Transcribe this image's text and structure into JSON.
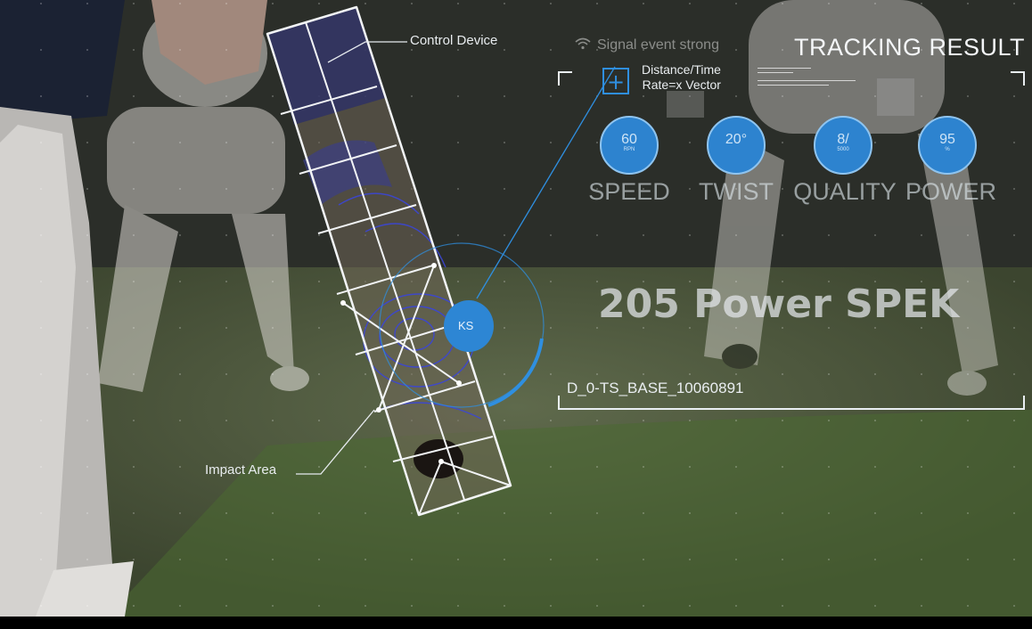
{
  "callouts": {
    "control_device": "Control Device",
    "impact_area": "Impact Area"
  },
  "sensor": {
    "label": "KS"
  },
  "panel": {
    "signal_text": "Signal event strong",
    "title": "TRACKING RESULT",
    "distance_line1": "Distance/Time",
    "distance_line2": "Rate=x Vector",
    "metrics": [
      {
        "value": "60",
        "unit": "RPN",
        "label": "SPEED"
      },
      {
        "value": "20°",
        "unit": "",
        "label": "TWIST"
      },
      {
        "value": "8/",
        "unit": "5000",
        "label": "QUALITY"
      },
      {
        "value": "95",
        "unit": "%",
        "label": "POWER"
      }
    ],
    "result": "205 Power SPEK",
    "base_id": "D_0-TS_BASE_10060891"
  },
  "colors": {
    "accent_blue": "#2d83cf",
    "line_blue": "#2f8fe0",
    "hud_white": "#eef2f5"
  }
}
